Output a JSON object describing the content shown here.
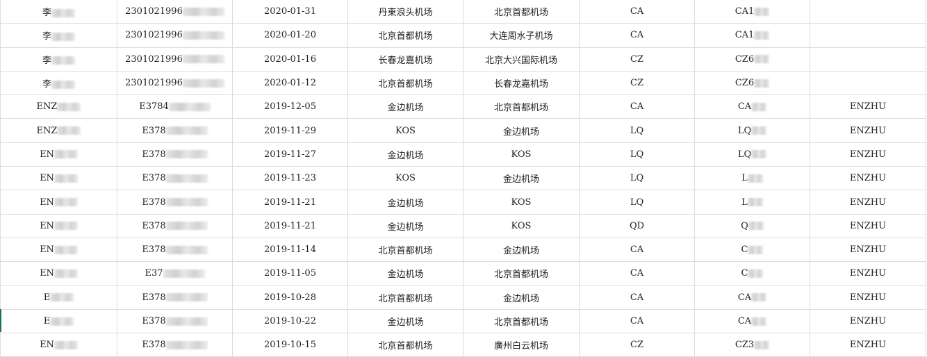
{
  "rows": [
    {
      "name": "李",
      "id": "2301021996",
      "date": "2020-01-31",
      "from": "丹東浪头机场",
      "to": "北京首都机场",
      "airline": "CA",
      "flight": "CA1",
      "pax": ""
    },
    {
      "name": "李",
      "id": "2301021996",
      "date": "2020-01-20",
      "from": "北京首都机场",
      "to": "大连周水子机场",
      "airline": "CA",
      "flight": "CA1",
      "pax": ""
    },
    {
      "name": "李",
      "id": "2301021996",
      "date": "2020-01-16",
      "from": "长春龙嘉机场",
      "to": "北京大兴国际机场",
      "airline": "CZ",
      "flight": "CZ6",
      "pax": ""
    },
    {
      "name": "李",
      "id": "2301021996",
      "date": "2020-01-12",
      "from": "北京首都机场",
      "to": "长春龙嘉机场",
      "airline": "CZ",
      "flight": "CZ6",
      "pax": ""
    },
    {
      "name": "ENZ",
      "id": "E3784",
      "date": "2019-12-05",
      "from": "金边机场",
      "to": "北京首都机场",
      "airline": "CA",
      "flight": "CA",
      "pax": "ENZHU"
    },
    {
      "name": "ENZ",
      "id": "E378",
      "date": "2019-11-29",
      "from": "KOS",
      "to": "金边机场",
      "airline": "LQ",
      "flight": "LQ",
      "pax": "ENZHU"
    },
    {
      "name": "EN",
      "id": "E378",
      "date": "2019-11-27",
      "from": "金边机场",
      "to": "KOS",
      "airline": "LQ",
      "flight": "LQ",
      "pax": "ENZHU"
    },
    {
      "name": "EN",
      "id": "E378",
      "date": "2019-11-23",
      "from": "KOS",
      "to": "金边机场",
      "airline": "LQ",
      "flight": "L",
      "pax": "ENZHU"
    },
    {
      "name": "EN",
      "id": "E378",
      "date": "2019-11-21",
      "from": "金边机场",
      "to": "KOS",
      "airline": "LQ",
      "flight": "L",
      "pax": "ENZHU"
    },
    {
      "name": "EN",
      "id": "E378",
      "date": "2019-11-21",
      "from": "金边机场",
      "to": "KOS",
      "airline": "QD",
      "flight": "Q",
      "pax": "ENZHU"
    },
    {
      "name": "EN",
      "id": "E378",
      "date": "2019-11-14",
      "from": "北京首都机场",
      "to": "金边机场",
      "airline": "CA",
      "flight": "C",
      "pax": "ENZHU"
    },
    {
      "name": "EN",
      "id": "E37",
      "date": "2019-11-05",
      "from": "金边机场",
      "to": "北京首都机场",
      "airline": "CA",
      "flight": "C",
      "pax": "ENZHU"
    },
    {
      "name": "E",
      "id": "E378",
      "date": "2019-10-28",
      "from": "北京首都机场",
      "to": "金边机场",
      "airline": "CA",
      "flight": "CA",
      "pax": "ENZHU"
    },
    {
      "name": "E",
      "id": "E378",
      "date": "2019-10-22",
      "from": "金边机场",
      "to": "北京首都机场",
      "airline": "CA",
      "flight": "CA",
      "pax": "ENZHU"
    },
    {
      "name": "EN",
      "id": "E378",
      "date": "2019-10-15",
      "from": "北京首都机场",
      "to": "廣州白云机场",
      "airline": "CZ",
      "flight": "CZ3",
      "pax": "ENZHU"
    }
  ]
}
